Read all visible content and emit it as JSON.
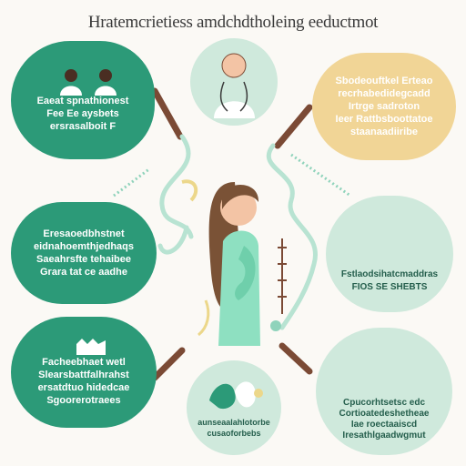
{
  "title": "Hratemcrietiess amdchdtholeing eeductmot",
  "panels": {
    "top_left": [
      "Eaeat spnathionest",
      "Fee Ee aysbets",
      "ersrasalboit F"
    ],
    "top_right": [
      "Sbodeouftkel Erteao",
      "recrhabedidegcadd",
      "Irtrge sadroton",
      "Ieer Rattbsboottatoe",
      "staanaadiiribe"
    ],
    "mid_left": [
      "Eresaoedbhstnet",
      "eidnahoemthjedhaqs",
      "Saeahrsfte tehaibee",
      "Grara tat ce aadhe"
    ],
    "mid_right": [
      "Fstlaodsihatcmaddras",
      "FIOS SE SHEBTS"
    ],
    "bottom_left": [
      "Facheebhaet wetl",
      "Slearsbattfalhrahst",
      "ersatdtuo hidedcae",
      "Sgoorerotraees"
    ],
    "bottom_center": [
      "aunseaalahlotorbe",
      "cusaoforbebs"
    ],
    "bottom_right": [
      "Cpucorhtsetsc edc",
      "Cortioatedeshetheae",
      "Iae roectaaiscd",
      "Iresathlgaadwgmut"
    ]
  },
  "colors": {
    "green": "#2c9a78",
    "mint": "#cfe9dc",
    "sand": "#f1d596",
    "brown": "#7b4a35",
    "skin": "#f3c4a5",
    "hair": "#7a5236",
    "shirt": "#8ee0c1"
  }
}
